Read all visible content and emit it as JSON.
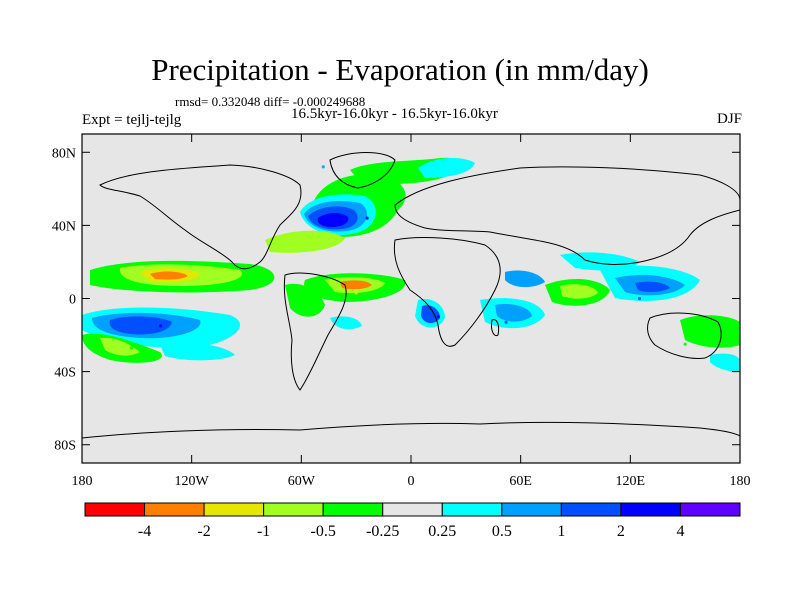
{
  "title": "Precipitation - Evaporation (in mm/day)",
  "stats": "rmsd= 0.332048 diff= -0.000249688",
  "period": "16.5kyr-16.0kyr - 16.5kyr-16.0kyr",
  "experiment": "Expt = tejlj-tejlg",
  "season": "DJF",
  "axes": {
    "y_ticks": [
      {
        "value": 80,
        "label": "80N"
      },
      {
        "value": 40,
        "label": "40N"
      },
      {
        "value": 0,
        "label": "0"
      },
      {
        "value": -40,
        "label": "40S"
      },
      {
        "value": -80,
        "label": "80S"
      }
    ],
    "x_ticks": [
      {
        "value": -180,
        "label": "180"
      },
      {
        "value": -120,
        "label": "120W"
      },
      {
        "value": -60,
        "label": "60W"
      },
      {
        "value": 0,
        "label": "0"
      },
      {
        "value": 60,
        "label": "60E"
      },
      {
        "value": 120,
        "label": "120E"
      },
      {
        "value": 180,
        "label": "180"
      }
    ],
    "lon_range": [
      -180,
      180
    ],
    "lat_range": [
      -90,
      90
    ]
  },
  "colorbar": {
    "colors": [
      "#ff0000",
      "#ff8000",
      "#e6e600",
      "#a0ff20",
      "#00ff00",
      "#e6e6e6",
      "#00ffff",
      "#00a0ff",
      "#0050ff",
      "#0000ff",
      "#6000ff"
    ],
    "labels": [
      "-4",
      "-2",
      "-1",
      "-0.5",
      "-0.25",
      "0.25",
      "0.5",
      "1",
      "2",
      "4"
    ],
    "land_color": "#e6e6e6"
  },
  "anomalies": [
    {
      "lon": -24,
      "lat": 44,
      "level": 2,
      "region": "north atlantic"
    },
    {
      "lon": -48,
      "lat": 72,
      "level": 0.5,
      "region": "greenland sea"
    },
    {
      "lon": -120,
      "lat": 12,
      "level": -2,
      "region": "tropical east pacific"
    },
    {
      "lon": -137,
      "lat": -15,
      "level": 2,
      "region": "south pacific"
    },
    {
      "lon": -153,
      "lat": -27,
      "level": -0.5,
      "region": "south pacific subtropics"
    },
    {
      "lon": -30,
      "lat": 3,
      "level": -2,
      "region": "tropical atlantic"
    },
    {
      "lon": -60,
      "lat": -8,
      "level": -0.5,
      "region": "amazon"
    },
    {
      "lon": 15,
      "lat": -10,
      "level": 2,
      "region": "central africa"
    },
    {
      "lon": 52,
      "lat": -13,
      "level": 1,
      "region": "madagascar"
    },
    {
      "lon": 85,
      "lat": 0,
      "level": -0.5,
      "region": "central indian ocean"
    },
    {
      "lon": 125,
      "lat": 0,
      "level": 1,
      "region": "maritime continent"
    },
    {
      "lon": 150,
      "lat": -25,
      "level": -0.5,
      "region": "australia"
    }
  ]
}
